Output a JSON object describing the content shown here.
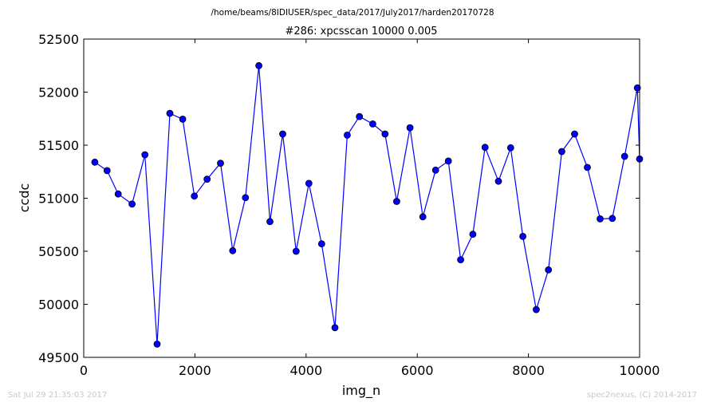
{
  "header": {
    "file_path": "/home/beams/8IDIUSER/spec_data/2017/July2017/harden20170728"
  },
  "footer": {
    "timestamp": "Sat Jul 29 21:35:03 2017",
    "credit": "spec2nexus, (C) 2014-2017"
  },
  "chart_data": {
    "type": "line",
    "title": "#286: xpcsscan 10000 0.005",
    "xlabel": "img_n",
    "ylabel": "ccdc",
    "xlim": [
      0,
      10000
    ],
    "ylim": [
      49500,
      52500
    ],
    "xticks": [
      "0",
      "2000",
      "4000",
      "6000",
      "8000",
      "10000"
    ],
    "yticks": [
      "49500",
      "50000",
      "50500",
      "51000",
      "51500",
      "52000",
      "52500"
    ],
    "grid": false,
    "marker": "circle",
    "line_color": "#0000ff",
    "marker_face_color": "#0000ff",
    "marker_edge_color": "#000000",
    "series": [
      {
        "x": [
          200,
          420,
          620,
          870,
          1100,
          1320,
          1550,
          1780,
          1990,
          2220,
          2460,
          2680,
          2910,
          3150,
          3350,
          3580,
          3820,
          4050,
          4280,
          4520,
          4740,
          4960,
          5200,
          5420,
          5630,
          5870,
          6100,
          6330,
          6560,
          6780,
          7000,
          7220,
          7460,
          7680,
          7900,
          8140,
          8360,
          8600,
          8830,
          9060,
          9290,
          9510,
          9730,
          9960,
          10000
        ],
        "y": [
          51340,
          51260,
          51040,
          50945,
          51410,
          49625,
          51800,
          51745,
          51020,
          51180,
          51330,
          50505,
          51005,
          52250,
          50780,
          51605,
          50500,
          51140,
          50570,
          49780,
          51595,
          51770,
          51700,
          51605,
          50970,
          51665,
          50825,
          51265,
          51350,
          50420,
          50660,
          51480,
          51160,
          51475,
          50640,
          49950,
          50325,
          51440,
          51605,
          51290,
          50805,
          50810,
          51395,
          52040,
          51370
        ]
      }
    ]
  }
}
